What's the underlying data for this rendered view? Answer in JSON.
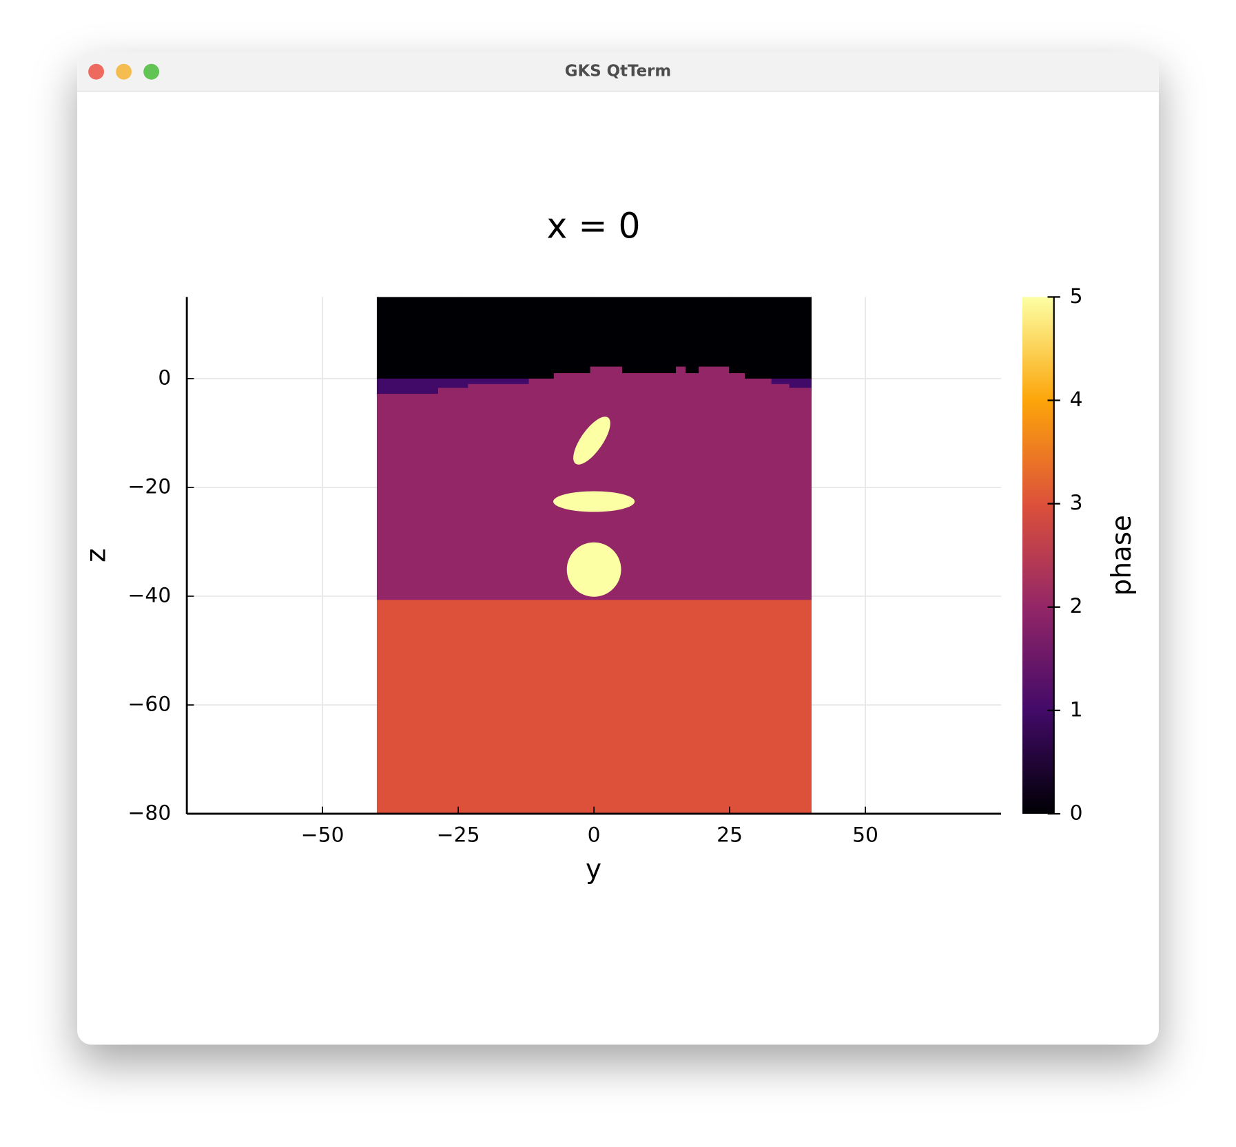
{
  "window": {
    "title": "GKS QtTerm"
  },
  "chart_data": {
    "type": "heatmap",
    "title": "x = 0",
    "x_label": "y",
    "y_label": "z",
    "xlim": [
      -75,
      75
    ],
    "ylim": [
      -80,
      15
    ],
    "xticks": [
      {
        "value": -50,
        "label": "−50"
      },
      {
        "value": -25,
        "label": "−25"
      },
      0,
      25,
      50
    ],
    "yticks": [
      {
        "value": -80,
        "label": "−80"
      },
      {
        "value": -60,
        "label": "−60"
      },
      {
        "value": -40,
        "label": "−40"
      },
      {
        "value": -20,
        "label": "−20"
      },
      0
    ],
    "grid": true,
    "colormap": "inferno",
    "colorbar": {
      "label": "phase",
      "clim": [
        0,
        5
      ],
      "ticks": [
        0,
        1,
        2,
        3,
        4,
        5
      ]
    },
    "regions": [
      {
        "y": [
          -40,
          40
        ],
        "z": [
          0,
          15
        ],
        "value": 0
      },
      {
        "y": [
          -40,
          40
        ],
        "z": [
          -3,
          0
        ],
        "value": 1
      },
      {
        "y": [
          -40,
          40
        ],
        "z": [
          -80,
          -40.6
        ],
        "value": 3
      },
      {
        "y": [
          -40,
          -28.7
        ],
        "z": [
          -40.6,
          -2.8
        ],
        "value": 2
      },
      {
        "y": [
          -28.7,
          -23.2
        ],
        "z": [
          -40.6,
          -1.7
        ],
        "value": 2
      },
      {
        "y": [
          -23.2,
          -12
        ],
        "z": [
          -40.6,
          -1
        ],
        "value": 2
      },
      {
        "y": [
          -12,
          -7.4
        ],
        "z": [
          -40.6,
          0
        ],
        "value": 2
      },
      {
        "y": [
          -7.4,
          -0.7
        ],
        "z": [
          -40.6,
          1
        ],
        "value": 2
      },
      {
        "y": [
          -0.7,
          5.1
        ],
        "z": [
          -40.6,
          2.2
        ],
        "value": 2
      },
      {
        "y": [
          5.1,
          15.1
        ],
        "z": [
          -40.6,
          1
        ],
        "value": 2
      },
      {
        "y": [
          15.1,
          16.8
        ],
        "z": [
          -40.6,
          2.2
        ],
        "value": 2
      },
      {
        "y": [
          16.8,
          19.3
        ],
        "z": [
          -40.6,
          1
        ],
        "value": 2
      },
      {
        "y": [
          19.3,
          24.8
        ],
        "z": [
          -40.6,
          2.2
        ],
        "value": 2
      },
      {
        "y": [
          24.8,
          27.7
        ],
        "z": [
          -40.6,
          1
        ],
        "value": 2
      },
      {
        "y": [
          27.7,
          32.6
        ],
        "z": [
          -40.6,
          0
        ],
        "value": 2
      },
      {
        "y": [
          32.6,
          35.9
        ],
        "z": [
          -40.6,
          -1
        ],
        "value": 2
      },
      {
        "y": [
          35.9,
          40
        ],
        "z": [
          -40.6,
          -1.7
        ],
        "value": 2
      }
    ],
    "blobs": [
      {
        "center": [
          -0.4,
          -11.4
        ],
        "radii": [
          5.2,
          2
        ],
        "angle": 55,
        "value": 5
      },
      {
        "center": [
          0,
          -22.6
        ],
        "radii": [
          7.5,
          1.9
        ],
        "angle": 0,
        "value": 5
      },
      {
        "center": [
          0,
          -35.1
        ],
        "radii": [
          5,
          5
        ],
        "angle": 0,
        "value": 5
      }
    ]
  }
}
